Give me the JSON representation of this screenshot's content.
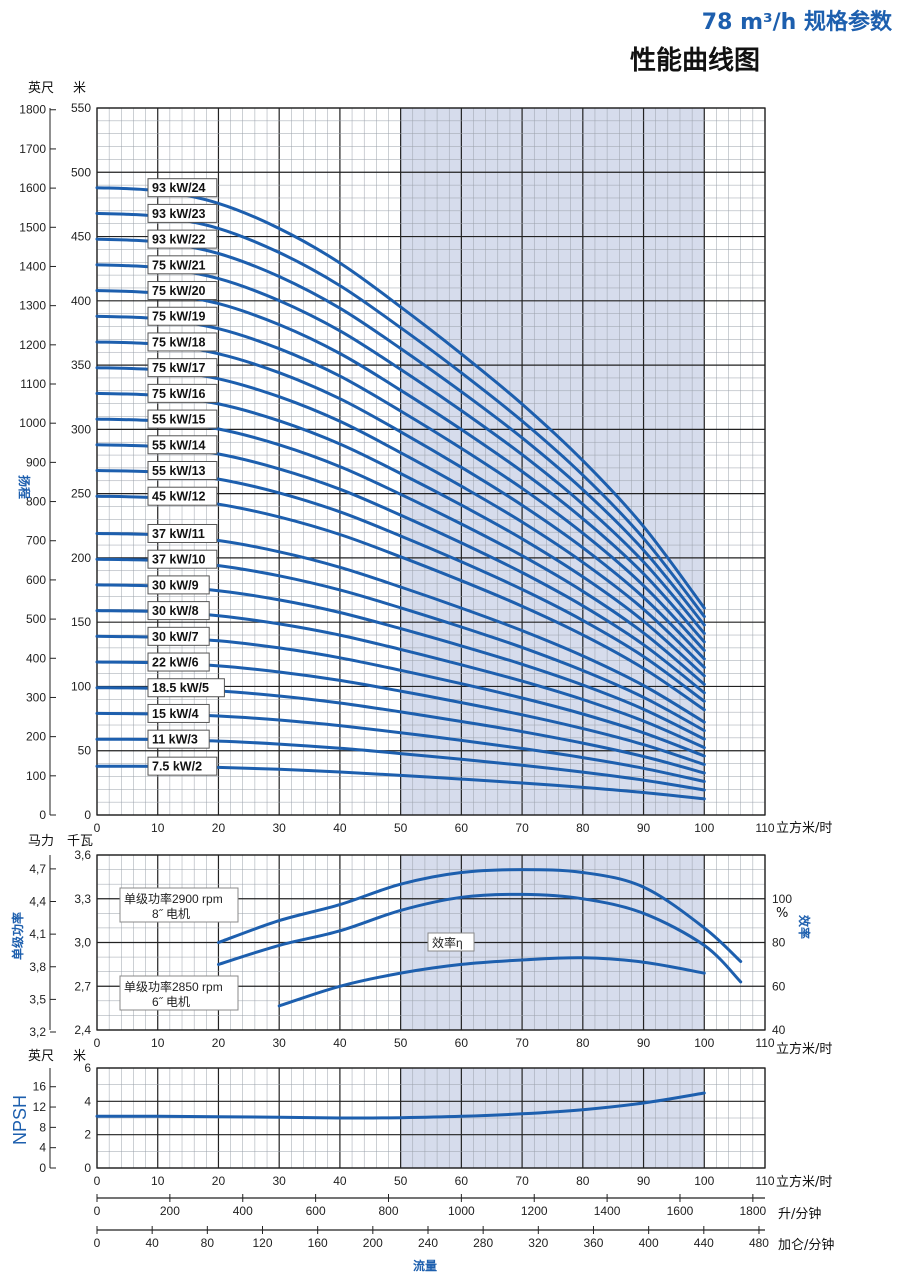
{
  "header": {
    "spec": "78 m³/h 规格参数",
    "subtitle": "性能曲线图"
  },
  "units": {
    "feet": "英尺",
    "meters": "米",
    "hp": "马力",
    "kw": "千瓦",
    "flow_m3h": "立方米/时",
    "flow_lmin": "升/分钟",
    "flow_gpm": "加仑/分钟",
    "flow_label": "流量",
    "head_label": "扬程",
    "power_label": "单级功率",
    "eff_label": "效率",
    "npsh_label": "NPSH",
    "percent": "%"
  },
  "annotations": {
    "p2900_line1": "单级功率2900  rpm",
    "p2900_line2": "8˝ 电机",
    "p2850_line1": "单级功率2850  rpm",
    "p2850_line2": "6˝ 电机",
    "eff_tag": "效率η"
  },
  "chart_data": [
    {
      "type": "line",
      "name": "head",
      "x_range": [
        0,
        110
      ],
      "ylim_m": [
        0,
        550
      ],
      "y_ticks_m": [
        0,
        50,
        100,
        150,
        200,
        250,
        300,
        350,
        400,
        450,
        500,
        550
      ],
      "y_ticks_ft": [
        0,
        100,
        200,
        300,
        400,
        500,
        600,
        700,
        800,
        900,
        1000,
        1100,
        1200,
        1300,
        1400,
        1500,
        1600,
        1700,
        1800
      ],
      "x_ticks": [
        0,
        10,
        20,
        30,
        40,
        50,
        60,
        70,
        80,
        90,
        100,
        110
      ],
      "shaded_x": [
        50,
        100
      ],
      "x": [
        0,
        10,
        20,
        30,
        40,
        50,
        60,
        70,
        80,
        90,
        100
      ],
      "shape_fraction": [
        1.0,
        0.995,
        0.975,
        0.935,
        0.88,
        0.81,
        0.735,
        0.655,
        0.565,
        0.46,
        0.33
      ],
      "series": [
        {
          "name": "7.5 kW/2",
          "h0": 38
        },
        {
          "name": "11 kW/3",
          "h0": 59
        },
        {
          "name": "15 kW/4",
          "h0": 79
        },
        {
          "name": "18.5 kW/5",
          "h0": 99
        },
        {
          "name": "22 kW/6",
          "h0": 119
        },
        {
          "name": "30 kW/7",
          "h0": 139
        },
        {
          "name": "30 kW/8",
          "h0": 159
        },
        {
          "name": "30 kW/9",
          "h0": 179
        },
        {
          "name": "37 kW/10",
          "h0": 199
        },
        {
          "name": "37 kW/11",
          "h0": 219
        },
        {
          "name": "45 kW/12",
          "h0": 248
        },
        {
          "name": "55 kW/13",
          "h0": 268
        },
        {
          "name": "55 kW/14",
          "h0": 288
        },
        {
          "name": "55 kW/15",
          "h0": 308
        },
        {
          "name": "75 kW/16",
          "h0": 328
        },
        {
          "name": "75 kW/17",
          "h0": 348
        },
        {
          "name": "75 kW/18",
          "h0": 368
        },
        {
          "name": "75 kW/19",
          "h0": 388
        },
        {
          "name": "75 kW/20",
          "h0": 408
        },
        {
          "name": "75 kW/21",
          "h0": 428
        },
        {
          "name": "93 kW/22",
          "h0": 448
        },
        {
          "name": "93 kW/23",
          "h0": 468
        },
        {
          "name": "93 kW/24",
          "h0": 488
        }
      ]
    },
    {
      "type": "line",
      "name": "power_efficiency",
      "x_range": [
        0,
        110
      ],
      "ylim_kw": [
        2.4,
        3.6
      ],
      "y_ticks_kw": [
        "2,4",
        "2,7",
        "3,0",
        "3,3",
        "3,6"
      ],
      "y_ticks_hp": [
        "3,2",
        "3,5",
        "3,8",
        "4,1",
        "4,4",
        "4,7"
      ],
      "y_ticks_eff": [
        40,
        60,
        80,
        100
      ],
      "x_ticks": [
        0,
        10,
        20,
        30,
        40,
        50,
        60,
        70,
        80,
        90,
        100,
        110
      ],
      "series": [
        {
          "name": "单级功率2900 rpm 8˝ 电机",
          "axis": "kw",
          "x": [
            20,
            30,
            40,
            50,
            60,
            70,
            80,
            90,
            100,
            106
          ],
          "y": [
            3.0,
            3.15,
            3.26,
            3.4,
            3.48,
            3.5,
            3.48,
            3.38,
            3.1,
            2.87
          ]
        },
        {
          "name": "单级功率2850 rpm 6˝ 电机",
          "axis": "kw",
          "x": [
            20,
            30,
            40,
            50,
            60,
            70,
            80,
            90,
            100,
            106
          ],
          "y": [
            2.85,
            2.98,
            3.08,
            3.22,
            3.31,
            3.33,
            3.3,
            3.2,
            2.98,
            2.73
          ]
        },
        {
          "name": "效率η",
          "axis": "eff",
          "x": [
            30,
            40,
            50,
            60,
            70,
            80,
            90,
            100
          ],
          "y": [
            51,
            60,
            66,
            70,
            72,
            73,
            71,
            66
          ]
        }
      ]
    },
    {
      "type": "line",
      "name": "npsh",
      "x_range": [
        0,
        110
      ],
      "ylim_m": [
        0,
        6
      ],
      "y_ticks_m": [
        0,
        2,
        4,
        6
      ],
      "y_ticks_ft": [
        0,
        4,
        8,
        12,
        16
      ],
      "x_ticks": [
        0,
        10,
        20,
        30,
        40,
        50,
        60,
        70,
        80,
        90,
        100,
        110
      ],
      "series": [
        {
          "name": "NPSH",
          "x": [
            0,
            10,
            20,
            30,
            40,
            50,
            60,
            70,
            80,
            90,
            100
          ],
          "y": [
            3.1,
            3.1,
            3.08,
            3.05,
            3.0,
            3.02,
            3.1,
            3.25,
            3.5,
            3.9,
            4.5
          ]
        }
      ]
    },
    {
      "type": "table",
      "name": "flow_scales",
      "lmin_ticks": [
        0,
        200,
        400,
        600,
        800,
        1000,
        1200,
        1400,
        1600,
        1800
      ],
      "gpm_ticks": [
        0,
        40,
        80,
        120,
        160,
        200,
        240,
        280,
        320,
        360,
        400,
        440,
        480
      ]
    }
  ]
}
